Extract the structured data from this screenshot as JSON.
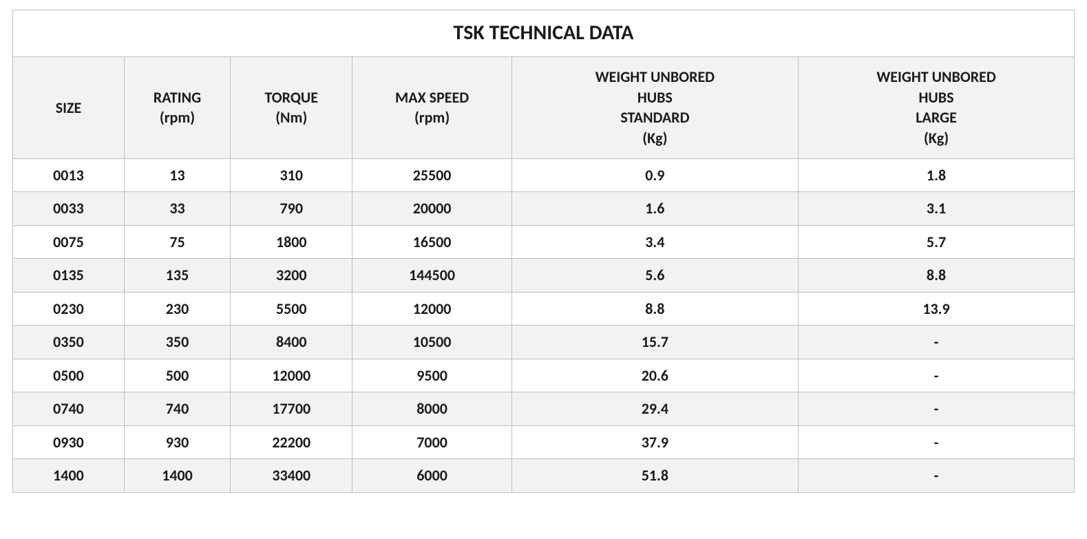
{
  "table": {
    "type": "table",
    "title": "TSK TECHNICAL DATA",
    "title_fontsize": 30,
    "header_fontsize": 22,
    "cell_fontsize": 22,
    "font_weight": "bold",
    "text_color": "#1a1a1a",
    "border_color": "#bfbfbf",
    "background_color": "#ffffff",
    "header_background": "#f2f2f2",
    "row_alt_background": "#f2f2f2",
    "columns": [
      {
        "key": "size",
        "label_lines": [
          "SIZE"
        ],
        "width_pct": 10.5,
        "align": "center"
      },
      {
        "key": "rating",
        "label_lines": [
          "RATING",
          "(rpm)"
        ],
        "width_pct": 10.0,
        "align": "center"
      },
      {
        "key": "torque",
        "label_lines": [
          "TORQUE",
          "(Nm)"
        ],
        "width_pct": 11.5,
        "align": "center"
      },
      {
        "key": "maxspeed",
        "label_lines": [
          "MAX SPEED",
          "(rpm)"
        ],
        "width_pct": 15.0,
        "align": "center"
      },
      {
        "key": "wt_std",
        "label_lines": [
          "WEIGHT UNBORED",
          "HUBS",
          "STANDARD",
          "(Kg)"
        ],
        "width_pct": 27.0,
        "align": "center"
      },
      {
        "key": "wt_lrg",
        "label_lines": [
          "WEIGHT UNBORED",
          "HUBS",
          "LARGE",
          "(Kg)"
        ],
        "width_pct": 26.0,
        "align": "center"
      }
    ],
    "rows": [
      {
        "size": "0013",
        "rating": "13",
        "torque": "310",
        "maxspeed": "25500",
        "wt_std": "0.9",
        "wt_lrg": "1.8"
      },
      {
        "size": "0033",
        "rating": "33",
        "torque": "790",
        "maxspeed": "20000",
        "wt_std": "1.6",
        "wt_lrg": "3.1"
      },
      {
        "size": "0075",
        "rating": "75",
        "torque": "1800",
        "maxspeed": "16500",
        "wt_std": "3.4",
        "wt_lrg": "5.7"
      },
      {
        "size": "0135",
        "rating": "135",
        "torque": "3200",
        "maxspeed": "144500",
        "wt_std": "5.6",
        "wt_lrg": "8.8"
      },
      {
        "size": "0230",
        "rating": "230",
        "torque": "5500",
        "maxspeed": "12000",
        "wt_std": "8.8",
        "wt_lrg": "13.9"
      },
      {
        "size": "0350",
        "rating": "350",
        "torque": "8400",
        "maxspeed": "10500",
        "wt_std": "15.7",
        "wt_lrg": "-"
      },
      {
        "size": "0500",
        "rating": "500",
        "torque": "12000",
        "maxspeed": "9500",
        "wt_std": "20.6",
        "wt_lrg": "-"
      },
      {
        "size": "0740",
        "rating": "740",
        "torque": "17700",
        "maxspeed": "8000",
        "wt_std": "29.4",
        "wt_lrg": "-"
      },
      {
        "size": "0930",
        "rating": "930",
        "torque": "22200",
        "maxspeed": "7000",
        "wt_std": "37.9",
        "wt_lrg": "-"
      },
      {
        "size": "1400",
        "rating": "1400",
        "torque": "33400",
        "maxspeed": "6000",
        "wt_std": "51.8",
        "wt_lrg": "-"
      }
    ]
  }
}
